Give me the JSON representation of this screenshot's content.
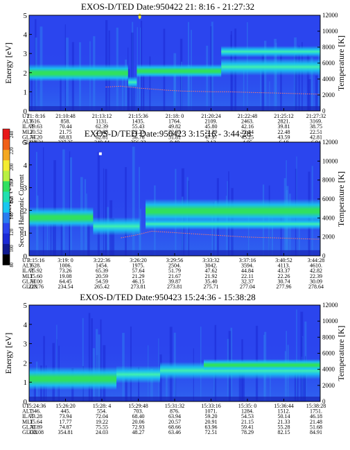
{
  "colors": {
    "background_low": "#1b2ad6",
    "background_mid": "#2b45ee",
    "cyan": "#19c8f0",
    "green": "#30e060",
    "yellow": "#f4ec30",
    "red": "#e03020",
    "temp_curve": "#ff7a6a"
  },
  "colorbar": {
    "label": "Second Harmonic Current",
    "ticks": [
      "240",
      "220",
      "200",
      "180",
      "160",
      "140",
      "120",
      "100",
      "80"
    ],
    "colors": [
      "#e81818",
      "#f06018",
      "#f4a820",
      "#f4ec30",
      "#b8f040",
      "#30e060",
      "#20e0b0",
      "#19c8f0",
      "#2b7cf0",
      "#2b45ee",
      "#1b2ad6",
      "#101a90",
      "#000000"
    ]
  },
  "chart_data": [
    {
      "type": "heatmap",
      "title": "EXOS-D/TED   Date:950422  21: 8:16 - 21:27:32",
      "ylabel": "Energy [eV]",
      "y2label": "Temperature [K]",
      "ylim": [
        0,
        5
      ],
      "y2lim": [
        0,
        12000
      ],
      "y_ticks": [
        "0",
        "1",
        "2",
        "3",
        "4",
        "5"
      ],
      "y2_ticks": [
        "0",
        "2000",
        "4000",
        "6000",
        "8000",
        "10000",
        "12000"
      ],
      "table": {
        "row_labels": [
          "UT",
          "ALT",
          "ILAT",
          "MLT",
          "GLAT",
          "GLON"
        ],
        "columns": [
          [
            "21: 8:16",
            "616.",
            "79.63",
            "20.52",
            "74.20",
            "312.21"
          ],
          [
            "21:10:48",
            "858.",
            "70.44",
            "21.75",
            "68.83",
            "337.35"
          ],
          [
            "21:13:12",
            "1131.",
            "62.39",
            "23.08",
            "62.61",
            "349.44"
          ],
          [
            "21:15:36",
            "1435.",
            "55.43",
            "22.23",
            "56.76",
            "356.22"
          ],
          [
            "21:18: 0",
            "1764.",
            "49.82",
            "22.33",
            "51.81",
            "0.40"
          ],
          [
            "21:20:24",
            "2109.",
            "45.80",
            "22.39",
            "47.97",
            "3.12"
          ],
          [
            "21:22:48",
            "2463.",
            "42.16",
            "22.44",
            "45.25",
            "4.95"
          ],
          [
            "21:25:12",
            "2821.",
            "39.81",
            "22.48",
            "43.59",
            "6.18"
          ],
          [
            "21:27:32",
            "3169.",
            "38.75",
            "22.51",
            "42.81",
            "6.94"
          ]
        ]
      },
      "temperature_curve_K": [
        null,
        null,
        null,
        null,
        null,
        3000,
        3100,
        2900,
        2750,
        2600,
        2500,
        2450,
        2400,
        2400,
        2350,
        2300,
        2250,
        2200,
        2150,
        2100
      ]
    },
    {
      "type": "heatmap",
      "title": "EXOS-D/TED   Date:950423  3:15:16 - 3:44:28",
      "ylabel": "Energy [eV]",
      "y2label": "Temperature [K]",
      "ylim": [
        0,
        5
      ],
      "y2lim": [
        0,
        12000
      ],
      "y_ticks": [
        "0",
        "1",
        "2",
        "3",
        "4",
        "5"
      ],
      "y2_ticks": [
        "0",
        "2000",
        "4000",
        "6000",
        "8000",
        "10000",
        "12000"
      ],
      "table": {
        "row_labels": [
          "UT",
          "ALT",
          "ILAT",
          "MLT",
          "GLAT",
          "GLON"
        ],
        "columns": [
          [
            "3:15:16",
            "628.",
            "75.92",
            "15.60",
            "74.00",
            "223.76"
          ],
          [
            "3:19: 0",
            "1006.",
            "73.26",
            "19.08",
            "64.45",
            "234.54"
          ],
          [
            "3:22:36",
            "1454.",
            "65.39",
            "20.59",
            "54.59",
            "265.42"
          ],
          [
            "3:26:20",
            "1975.",
            "57.64",
            "21.29",
            "46.15",
            "273.81"
          ],
          [
            "3:29:56",
            "2504.",
            "51.79",
            "21.67",
            "39.87",
            "273.81"
          ],
          [
            "3:33:32",
            "3042.",
            "47.62",
            "21.92",
            "35.40",
            "275.71"
          ],
          [
            "3:37:16",
            "3594.",
            "44.84",
            "22.11",
            "32.37",
            "277.04"
          ],
          [
            "3:40:52",
            "4113.",
            "43.37",
            "22.26",
            "30.74",
            "277.96"
          ],
          [
            "3:44:28",
            "4610.",
            "42.82",
            "22.39",
            "30.09",
            "278.64"
          ]
        ]
      },
      "temperature_curve_K": [
        null,
        null,
        null,
        null,
        null,
        null,
        1900,
        2200,
        2600,
        2500,
        2400,
        2300,
        2200,
        2100,
        2000,
        1950,
        1900,
        1850,
        1800,
        1750
      ]
    },
    {
      "type": "heatmap",
      "title": "EXOS-D/TED   Date:950423  15:24:36 - 15:38:28",
      "ylabel": "Energy [eV]",
      "y2label": "Temperature [K]",
      "ylim": [
        0,
        5
      ],
      "y2lim": [
        0,
        12000
      ],
      "y_ticks": [
        "0",
        "1",
        "2",
        "3",
        "4",
        "5"
      ],
      "y2_ticks": [
        "0",
        "2000",
        "4000",
        "6000",
        "8000",
        "10000",
        "12000"
      ],
      "table": {
        "row_labels": [
          "UT",
          "ALT",
          "ILAT",
          "MLT",
          "GLAT",
          "GLON"
        ],
        "columns": [
          [
            "15:24:36",
            "346.",
            "73.28",
            "15.64",
            "70.89",
            "332.08"
          ],
          [
            "15:26:20",
            "445.",
            "73.94",
            "17.77",
            "74.87",
            "354.81"
          ],
          [
            "15:28: 4",
            "554.",
            "72.04",
            "19.22",
            "75.55",
            "24.03"
          ],
          [
            "15:29:48",
            "703.",
            "68.40",
            "20.06",
            "72.93",
            "48.27"
          ],
          [
            "15:31:32",
            "876.",
            "63.94",
            "20.57",
            "68.66",
            "63.46"
          ],
          [
            "15:33:16",
            "1071.",
            "59.20",
            "20.91",
            "63.96",
            "72.51"
          ],
          [
            "15:35: 0",
            "1284.",
            "54.53",
            "21.15",
            "59.41",
            "78.29"
          ],
          [
            "15:36:44",
            "1512.",
            "50.14",
            "21.33",
            "55.28",
            "82.15"
          ],
          [
            "15:38:28",
            "1751.",
            "46.18",
            "21.48",
            "51.68",
            "84.91"
          ]
        ]
      },
      "temperature_curve_K": []
    }
  ]
}
